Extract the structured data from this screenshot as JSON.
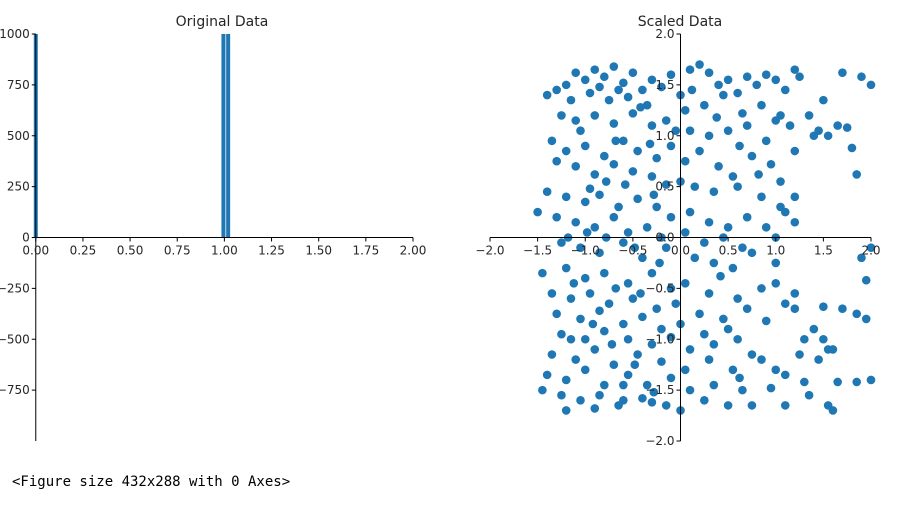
{
  "chart_data": [
    {
      "type": "bar",
      "title": "Original Data",
      "xlabel": "",
      "ylabel": "",
      "xlim": [
        -0.02,
        2.0
      ],
      "ylim": [
        -1000,
        1000
      ],
      "xticks": [
        0.0,
        0.25,
        0.5,
        0.75,
        1.0,
        1.25,
        1.5,
        1.75,
        2.0
      ],
      "xtick_labels": [
        "0.00",
        "0.25",
        "0.50",
        "0.75",
        "1.00",
        "1.25",
        "1.50",
        "1.75",
        "2.00"
      ],
      "yticks": [
        -750,
        -500,
        -250,
        0,
        250,
        500,
        750,
        1000
      ],
      "ytick_labels": [
        "−750",
        "−500",
        "−250",
        "0",
        "250",
        "500",
        "750",
        "1000"
      ],
      "spines": "centered",
      "color": "#1f77b4",
      "bars": [
        {
          "x": 0.0,
          "height": 1000
        },
        {
          "x": 0.995,
          "height": 1000
        },
        {
          "x": 1.02,
          "height": 1000
        }
      ]
    },
    {
      "type": "scatter",
      "title": "Scaled Data",
      "xlabel": "",
      "ylabel": "",
      "xlim": [
        -2.0,
        2.0
      ],
      "ylim": [
        -2.0,
        2.0
      ],
      "xticks": [
        -2.0,
        -1.5,
        -1.0,
        -0.5,
        0.0,
        0.5,
        1.0,
        1.5,
        2.0
      ],
      "xtick_labels": [
        "−2.0",
        "−1.5",
        "−1.0",
        "−0.5",
        "0.0",
        "0.5",
        "1.0",
        "1.5",
        "2.0"
      ],
      "yticks": [
        -2.0,
        -1.5,
        -1.0,
        -0.5,
        0.0,
        0.5,
        1.0,
        1.5,
        2.0
      ],
      "ytick_labels": [
        "−2.0",
        "−1.5",
        "−1.0",
        "−0.5",
        "0.0",
        "0.5",
        "1.0",
        "1.5",
        "2.0"
      ],
      "spines": "centered",
      "color": "#1f77b4",
      "points": [
        [
          -1.2,
          1.5
        ],
        [
          -1.1,
          1.62
        ],
        [
          -1.0,
          1.55
        ],
        [
          -0.9,
          1.65
        ],
        [
          -0.8,
          1.58
        ],
        [
          -0.7,
          1.68
        ],
        [
          -0.6,
          1.52
        ],
        [
          -0.5,
          1.62
        ],
        [
          -0.4,
          1.45
        ],
        [
          -0.3,
          1.55
        ],
        [
          -1.3,
          1.45
        ],
        [
          -1.4,
          1.4
        ],
        [
          -1.15,
          1.35
        ],
        [
          -0.95,
          1.42
        ],
        [
          -0.75,
          1.35
        ],
        [
          -0.55,
          1.38
        ],
        [
          -0.35,
          1.3
        ],
        [
          -0.2,
          1.48
        ],
        [
          -0.1,
          1.6
        ],
        [
          0.0,
          1.4
        ],
        [
          0.1,
          1.65
        ],
        [
          0.2,
          1.7
        ],
        [
          0.3,
          1.62
        ],
        [
          0.4,
          1.5
        ],
        [
          0.5,
          1.55
        ],
        [
          0.6,
          1.42
        ],
        [
          0.7,
          1.58
        ],
        [
          0.8,
          1.5
        ],
        [
          0.9,
          1.6
        ],
        [
          1.0,
          1.55
        ],
        [
          1.1,
          1.45
        ],
        [
          1.2,
          1.65
        ],
        [
          1.25,
          1.58
        ],
        [
          1.5,
          1.35
        ],
        [
          1.7,
          1.62
        ],
        [
          1.9,
          1.58
        ],
        [
          2.0,
          1.5
        ],
        [
          0.05,
          1.25
        ],
        [
          0.25,
          1.3
        ],
        [
          0.45,
          1.4
        ],
        [
          0.65,
          1.22
        ],
        [
          0.85,
          1.3
        ],
        [
          1.05,
          1.2
        ],
        [
          1.15,
          1.1
        ],
        [
          1.35,
          1.2
        ],
        [
          1.45,
          1.05
        ],
        [
          1.65,
          1.1
        ],
        [
          1.75,
          1.08
        ],
        [
          1.8,
          0.88
        ],
        [
          1.85,
          0.62
        ],
        [
          -1.25,
          1.2
        ],
        [
          -1.1,
          1.15
        ],
        [
          -0.9,
          1.2
        ],
        [
          -0.7,
          1.12
        ],
        [
          -0.5,
          1.22
        ],
        [
          -0.3,
          1.1
        ],
        [
          -0.15,
          1.15
        ],
        [
          -0.05,
          1.05
        ],
        [
          0.1,
          1.05
        ],
        [
          0.3,
          1.0
        ],
        [
          0.5,
          1.05
        ],
        [
          0.7,
          1.1
        ],
        [
          0.9,
          0.95
        ],
        [
          1.0,
          1.15
        ],
        [
          1.2,
          0.85
        ],
        [
          1.4,
          1.0
        ],
        [
          1.55,
          1.0
        ],
        [
          -1.35,
          0.95
        ],
        [
          -1.2,
          0.85
        ],
        [
          -1.0,
          0.9
        ],
        [
          -0.8,
          0.8
        ],
        [
          -0.6,
          0.95
        ],
        [
          -0.45,
          0.85
        ],
        [
          -0.25,
          0.78
        ],
        [
          -0.1,
          0.9
        ],
        [
          0.05,
          0.75
        ],
        [
          0.2,
          0.85
        ],
        [
          0.4,
          0.7
        ],
        [
          0.55,
          0.6
        ],
        [
          0.75,
          0.8
        ],
        [
          0.95,
          0.72
        ],
        [
          1.05,
          0.55
        ],
        [
          -1.3,
          0.75
        ],
        [
          -1.1,
          0.7
        ],
        [
          -0.9,
          0.62
        ],
        [
          -0.7,
          0.72
        ],
        [
          -0.5,
          0.65
        ],
        [
          -0.3,
          0.6
        ],
        [
          -0.15,
          0.52
        ],
        [
          0.0,
          0.55
        ],
        [
          0.15,
          0.5
        ],
        [
          0.35,
          0.45
        ],
        [
          0.6,
          0.5
        ],
        [
          0.85,
          0.4
        ],
        [
          1.05,
          0.3
        ],
        [
          1.2,
          0.4
        ],
        [
          1.1,
          0.25
        ],
        [
          -1.4,
          0.45
        ],
        [
          -1.2,
          0.4
        ],
        [
          -1.0,
          0.35
        ],
        [
          -0.85,
          0.42
        ],
        [
          -0.65,
          0.3
        ],
        [
          -0.45,
          0.38
        ],
        [
          -0.25,
          0.3
        ],
        [
          -0.1,
          0.2
        ],
        [
          0.1,
          0.25
        ],
        [
          0.3,
          0.15
        ],
        [
          0.5,
          0.1
        ],
        [
          0.7,
          0.2
        ],
        [
          0.9,
          0.1
        ],
        [
          1.2,
          0.15
        ],
        [
          -1.5,
          0.25
        ],
        [
          -1.3,
          0.2
        ],
        [
          -1.1,
          0.15
        ],
        [
          -0.9,
          0.1
        ],
        [
          -0.7,
          0.2
        ],
        [
          -0.55,
          0.05
        ],
        [
          -0.35,
          0.1
        ],
        [
          -0.2,
          0.0
        ],
        [
          0.05,
          0.05
        ],
        [
          0.25,
          -0.05
        ],
        [
          0.45,
          0.0
        ],
        [
          0.65,
          -0.1
        ],
        [
          1.0,
          0.0
        ],
        [
          -1.25,
          -0.05
        ],
        [
          -1.05,
          -0.1
        ],
        [
          -0.85,
          -0.15
        ],
        [
          -0.6,
          -0.05
        ],
        [
          -0.4,
          -0.2
        ],
        [
          -0.15,
          -0.1
        ],
        [
          0.15,
          -0.2
        ],
        [
          0.35,
          -0.25
        ],
        [
          0.55,
          -0.3
        ],
        [
          0.75,
          -0.15
        ],
        [
          1.0,
          -0.25
        ],
        [
          1.9,
          -0.2
        ],
        [
          2.0,
          -0.1
        ],
        [
          -1.45,
          -0.35
        ],
        [
          -1.2,
          -0.3
        ],
        [
          -1.0,
          -0.4
        ],
        [
          -0.8,
          -0.35
        ],
        [
          -0.55,
          -0.45
        ],
        [
          -0.3,
          -0.35
        ],
        [
          -0.1,
          -0.5
        ],
        [
          0.05,
          -0.45
        ],
        [
          0.3,
          -0.55
        ],
        [
          0.6,
          -0.6
        ],
        [
          0.85,
          -0.5
        ],
        [
          1.0,
          -0.45
        ],
        [
          1.2,
          -0.55
        ],
        [
          1.1,
          -0.65
        ],
        [
          1.95,
          -0.42
        ],
        [
          -1.35,
          -0.55
        ],
        [
          -1.15,
          -0.6
        ],
        [
          -0.95,
          -0.55
        ],
        [
          -0.75,
          -0.65
        ],
        [
          -0.5,
          -0.6
        ],
        [
          -0.25,
          -0.7
        ],
        [
          -0.05,
          -0.65
        ],
        [
          0.2,
          -0.75
        ],
        [
          0.45,
          -0.8
        ],
        [
          0.7,
          -0.7
        ],
        [
          1.2,
          -0.7
        ],
        [
          1.5,
          -0.68
        ],
        [
          -1.3,
          -0.75
        ],
        [
          -1.05,
          -0.8
        ],
        [
          -0.85,
          -0.72
        ],
        [
          -0.6,
          -0.85
        ],
        [
          -0.4,
          -0.78
        ],
        [
          -0.2,
          -0.9
        ],
        [
          0.0,
          -0.85
        ],
        [
          0.25,
          -0.95
        ],
        [
          0.5,
          -0.9
        ],
        [
          0.9,
          -0.82
        ],
        [
          1.7,
          -0.7
        ],
        [
          1.85,
          -0.75
        ],
        [
          1.95,
          -0.8
        ],
        [
          -1.25,
          -0.95
        ],
        [
          -1.0,
          -1.0
        ],
        [
          -0.8,
          -0.92
        ],
        [
          -0.55,
          -1.0
        ],
        [
          -0.3,
          -1.05
        ],
        [
          -0.1,
          -0.98
        ],
        [
          0.1,
          -1.1
        ],
        [
          0.35,
          -1.05
        ],
        [
          0.6,
          -1.0
        ],
        [
          0.75,
          -1.15
        ],
        [
          1.3,
          -1.0
        ],
        [
          1.4,
          -0.9
        ],
        [
          1.5,
          -1.0
        ],
        [
          1.6,
          -1.1
        ],
        [
          -1.35,
          -1.15
        ],
        [
          -1.1,
          -1.2
        ],
        [
          -0.9,
          -1.1
        ],
        [
          -0.7,
          -1.25
        ],
        [
          -0.45,
          -1.15
        ],
        [
          -0.2,
          -1.22
        ],
        [
          0.05,
          -1.3
        ],
        [
          0.3,
          -1.2
        ],
        [
          0.55,
          -1.3
        ],
        [
          0.85,
          -1.2
        ],
        [
          1.0,
          -1.3
        ],
        [
          1.25,
          -1.15
        ],
        [
          1.45,
          -1.2
        ],
        [
          1.55,
          -1.1
        ],
        [
          -1.4,
          -1.35
        ],
        [
          -1.2,
          -1.4
        ],
        [
          -1.0,
          -1.3
        ],
        [
          -0.8,
          -1.45
        ],
        [
          -0.55,
          -1.35
        ],
        [
          -0.35,
          -1.45
        ],
        [
          -0.1,
          -1.38
        ],
        [
          0.1,
          -1.5
        ],
        [
          0.35,
          -1.45
        ],
        [
          0.65,
          -1.5
        ],
        [
          0.95,
          -1.48
        ],
        [
          1.1,
          -1.35
        ],
        [
          1.3,
          -1.42
        ],
        [
          1.65,
          -1.42
        ],
        [
          1.85,
          -1.42
        ],
        [
          2.0,
          -1.4
        ],
        [
          -1.25,
          -1.55
        ],
        [
          -1.05,
          -1.6
        ],
        [
          -0.85,
          -1.55
        ],
        [
          -0.65,
          -1.65
        ],
        [
          -0.4,
          -1.58
        ],
        [
          -0.15,
          -1.65
        ],
        [
          0.0,
          -1.7
        ],
        [
          0.25,
          -1.6
        ],
        [
          0.5,
          -1.65
        ],
        [
          0.75,
          -1.65
        ],
        [
          1.1,
          -1.65
        ],
        [
          1.35,
          -1.55
        ],
        [
          1.55,
          -1.65
        ],
        [
          1.6,
          -1.7
        ],
        [
          -1.2,
          -1.7
        ],
        [
          -0.9,
          -1.68
        ],
        [
          -0.6,
          -1.6
        ],
        [
          -0.3,
          -1.62
        ],
        [
          -1.45,
          -1.5
        ],
        [
          -0.65,
          1.45
        ],
        [
          -0.85,
          1.48
        ],
        [
          -0.42,
          1.28
        ],
        [
          -1.05,
          1.05
        ],
        [
          -0.68,
          0.95
        ],
        [
          -0.32,
          0.92
        ],
        [
          -0.95,
          0.48
        ],
        [
          -0.78,
          0.55
        ],
        [
          -0.58,
          0.52
        ],
        [
          -0.28,
          0.42
        ],
        [
          -1.18,
          0.0
        ],
        [
          -0.98,
          0.05
        ],
        [
          -0.78,
          0.0
        ],
        [
          -0.48,
          -0.1
        ],
        [
          -0.22,
          -0.25
        ],
        [
          -1.12,
          -0.45
        ],
        [
          -0.68,
          -0.5
        ],
        [
          -0.42,
          -0.55
        ],
        [
          -0.92,
          -0.85
        ],
        [
          -0.72,
          -1.05
        ],
        [
          -0.48,
          -1.25
        ],
        [
          -0.28,
          -1.52
        ],
        [
          -1.15,
          -1.0
        ],
        [
          -0.6,
          -1.45
        ],
        [
          0.12,
          1.45
        ],
        [
          0.38,
          1.18
        ],
        [
          0.62,
          0.9
        ],
        [
          0.82,
          0.62
        ],
        [
          0.42,
          -0.38
        ],
        [
          0.62,
          -1.38
        ]
      ]
    }
  ],
  "footer_text": "<Figure size 432x288 with 0 Axes>"
}
